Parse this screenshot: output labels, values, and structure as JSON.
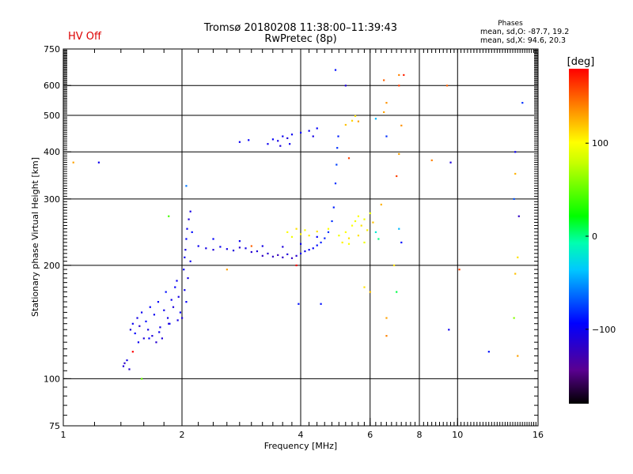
{
  "status_text": "HV Off",
  "title_line1": "Tromsø 20180208 11:38:00–11:39:43",
  "title_line2": "RwPretec (8p)",
  "stats": {
    "heading": "Phases",
    "o_line": "mean, sd,O: -87.7, 19.2",
    "x_line": "mean, sd,X:  94.6, 20.3"
  },
  "colors": {
    "status": "#dd0000",
    "grid": "#000000"
  },
  "colorbar": {
    "unit": "[deg]",
    "range": [
      -180,
      180
    ],
    "ticks": [
      {
        "value": 100,
        "label": "100"
      },
      {
        "value": 0,
        "label": "0"
      },
      {
        "value": -100,
        "label": "−100"
      }
    ]
  },
  "chart_data": {
    "type": "scatter",
    "xlabel": "Frequency [MHz]",
    "ylabel": "Stationary phase Virtual Height [km]",
    "x_scale": "log",
    "y_scale": "log",
    "xlim": [
      1,
      16
    ],
    "ylim": [
      75,
      750
    ],
    "grid": true,
    "x_ticks": [
      {
        "value": 1,
        "label": "1"
      },
      {
        "value": 2,
        "label": "2"
      },
      {
        "value": 4,
        "label": "4"
      },
      {
        "value": 6,
        "label": "6"
      },
      {
        "value": 8,
        "label": "8"
      },
      {
        "value": 10,
        "label": "10"
      },
      {
        "value": 16,
        "label": "16"
      }
    ],
    "y_ticks": [
      {
        "value": 75,
        "label": "75"
      },
      {
        "value": 100,
        "label": "100"
      },
      {
        "value": 200,
        "label": "200"
      },
      {
        "value": 300,
        "label": "300"
      },
      {
        "value": 400,
        "label": "400"
      },
      {
        "value": 500,
        "label": "500"
      },
      {
        "value": 600,
        "label": "600"
      },
      {
        "value": 750,
        "label": "750"
      }
    ],
    "x_grid": [
      2,
      4,
      6,
      8,
      10
    ],
    "y_grid": [
      100,
      200,
      300,
      400,
      500,
      600
    ],
    "color_value": "phase [deg]",
    "series": [
      {
        "points": [
          [
            1.42,
            108,
            -110
          ],
          [
            1.43,
            110,
            -120
          ],
          [
            1.45,
            112,
            -105
          ],
          [
            1.47,
            106,
            -115
          ],
          [
            1.48,
            135,
            -110
          ],
          [
            1.5,
            140,
            -100
          ],
          [
            1.52,
            132,
            -95
          ],
          [
            1.54,
            145,
            -105
          ],
          [
            1.56,
            138,
            -115
          ],
          [
            1.58,
            150,
            -100
          ],
          [
            1.6,
            128,
            -110
          ],
          [
            1.62,
            142,
            -90
          ],
          [
            1.64,
            135,
            -105
          ],
          [
            1.66,
            155,
            -95
          ],
          [
            1.68,
            130,
            -110
          ],
          [
            1.7,
            148,
            -100
          ],
          [
            1.72,
            125,
            -115
          ],
          [
            1.74,
            160,
            -95
          ],
          [
            1.76,
            137,
            -105
          ],
          [
            1.78,
            128,
            -110
          ],
          [
            1.8,
            152,
            -100
          ],
          [
            1.82,
            170,
            -90
          ],
          [
            1.84,
            145,
            -105
          ],
          [
            1.86,
            140,
            -95
          ],
          [
            1.88,
            162,
            -100
          ],
          [
            1.9,
            155,
            -110
          ],
          [
            1.92,
            175,
            -95
          ],
          [
            1.94,
            182,
            -100
          ],
          [
            1.96,
            165,
            -105
          ],
          [
            1.98,
            150,
            -95
          ],
          [
            2.0,
            145,
            -110
          ],
          [
            1.55,
            125,
            -100
          ],
          [
            1.65,
            128,
            -95
          ],
          [
            1.75,
            133,
            -100
          ],
          [
            1.85,
            140,
            -110
          ],
          [
            1.95,
            143,
            -105
          ],
          [
            2.02,
            195,
            -95
          ],
          [
            2.03,
            210,
            -100
          ],
          [
            2.04,
            220,
            -105
          ],
          [
            2.05,
            235,
            -95
          ],
          [
            2.06,
            250,
            -100
          ],
          [
            2.08,
            265,
            -110
          ],
          [
            2.1,
            278,
            -105
          ],
          [
            2.12,
            245,
            -90
          ],
          [
            2.03,
            172,
            -100
          ],
          [
            2.05,
            160,
            -95
          ],
          [
            2.07,
            185,
            -105
          ],
          [
            2.1,
            205,
            -100
          ]
        ]
      },
      {
        "points": [
          [
            2.2,
            225,
            -100
          ],
          [
            2.3,
            222,
            -105
          ],
          [
            2.4,
            220,
            -110
          ],
          [
            2.5,
            224,
            -100
          ],
          [
            2.6,
            221,
            -105
          ],
          [
            2.7,
            219,
            -110
          ],
          [
            2.8,
            223,
            -115
          ],
          [
            2.9,
            222,
            -105
          ],
          [
            3.0,
            217,
            -115
          ],
          [
            3.1,
            218,
            -110
          ],
          [
            3.2,
            212,
            -120
          ],
          [
            3.3,
            215,
            -115
          ],
          [
            3.4,
            211,
            -120
          ],
          [
            3.5,
            213,
            -125
          ],
          [
            3.6,
            210,
            -118
          ],
          [
            3.7,
            214,
            -110
          ],
          [
            3.8,
            209,
            -120
          ],
          [
            3.9,
            212,
            -115
          ],
          [
            4.0,
            215,
            -105
          ],
          [
            4.1,
            218,
            -100
          ],
          [
            4.2,
            220,
            -100
          ],
          [
            4.3,
            222,
            -95
          ],
          [
            4.4,
            226,
            -90
          ],
          [
            4.5,
            230,
            -85
          ],
          [
            4.6,
            236,
            -85
          ],
          [
            4.7,
            245,
            -80
          ],
          [
            4.8,
            262,
            -80
          ],
          [
            4.85,
            285,
            -85
          ],
          [
            4.9,
            330,
            -80
          ],
          [
            4.93,
            370,
            -75
          ],
          [
            4.95,
            410,
            -80
          ],
          [
            4.98,
            440,
            -85
          ],
          [
            2.4,
            235,
            -95
          ],
          [
            2.8,
            232,
            -100
          ],
          [
            3.2,
            225,
            -105
          ],
          [
            3.6,
            224,
            -110
          ],
          [
            4.0,
            228,
            -100
          ],
          [
            4.4,
            238,
            -95
          ]
        ]
      },
      {
        "points": [
          [
            3.3,
            420,
            -100
          ],
          [
            3.4,
            432,
            -95
          ],
          [
            3.5,
            428,
            -105
          ],
          [
            3.6,
            440,
            -100
          ],
          [
            3.7,
            435,
            -110
          ],
          [
            3.8,
            445,
            -100
          ],
          [
            4.0,
            450,
            -95
          ],
          [
            4.2,
            455,
            -100
          ],
          [
            4.3,
            440,
            -105
          ],
          [
            4.4,
            462,
            -95
          ],
          [
            3.55,
            415,
            -110
          ],
          [
            3.75,
            420,
            -100
          ],
          [
            2.8,
            425,
            -100
          ],
          [
            2.95,
            430,
            -95
          ]
        ]
      },
      {
        "points": [
          [
            3.7,
            245,
            100
          ],
          [
            3.8,
            238,
            95
          ],
          [
            3.9,
            250,
            110
          ],
          [
            4.0,
            242,
            105
          ],
          [
            4.1,
            248,
            100
          ],
          [
            4.2,
            240,
            105
          ],
          [
            4.4,
            246,
            110
          ],
          [
            4.7,
            250,
            100
          ],
          [
            5.0,
            240,
            95
          ],
          [
            5.2,
            245,
            100
          ],
          [
            5.3,
            236,
            110
          ],
          [
            5.4,
            255,
            100
          ],
          [
            5.5,
            262,
            95
          ],
          [
            5.6,
            270,
            100
          ],
          [
            5.7,
            255,
            110
          ],
          [
            5.8,
            265,
            95
          ],
          [
            5.9,
            248,
            105
          ],
          [
            6.0,
            275,
            90
          ],
          [
            5.1,
            230,
            105
          ],
          [
            5.3,
            228,
            100
          ],
          [
            5.6,
            240,
            110
          ],
          [
            5.8,
            230,
            95
          ],
          [
            5.2,
            472,
            120
          ],
          [
            5.4,
            484,
            115
          ],
          [
            5.5,
            498,
            110
          ],
          [
            5.6,
            482,
            130
          ],
          [
            6.4,
            290,
            125
          ],
          [
            6.1,
            260,
            120
          ]
        ]
      },
      {
        "points": [
          [
            6.5,
            620,
            150
          ],
          [
            7.1,
            640,
            140
          ],
          [
            7.3,
            640,
            170
          ],
          [
            7.1,
            600,
            160
          ],
          [
            6.6,
            540,
            135
          ],
          [
            6.5,
            510,
            130
          ],
          [
            7.2,
            470,
            135
          ],
          [
            7.1,
            395,
            130
          ],
          [
            8.6,
            380,
            140
          ],
          [
            9.4,
            600,
            150
          ],
          [
            7.0,
            345,
            160
          ],
          [
            14.0,
            350,
            125
          ],
          [
            14.2,
            210,
            110
          ],
          [
            14.0,
            190,
            120
          ],
          [
            13.9,
            145,
            60
          ],
          [
            14.2,
            115,
            130
          ],
          [
            6.3,
            235,
            0
          ],
          [
            6.2,
            245,
            -20
          ],
          [
            7.1,
            250,
            -40
          ],
          [
            7.0,
            170,
            10
          ],
          [
            6.2,
            490,
            -40
          ],
          [
            7.2,
            230,
            -90
          ],
          [
            6.6,
            440,
            -80
          ],
          [
            5.2,
            600,
            -110
          ],
          [
            12.0,
            118,
            -90
          ],
          [
            9.5,
            135,
            -100
          ],
          [
            14.3,
            270,
            -120
          ],
          [
            13.9,
            300,
            -70
          ],
          [
            14.6,
            540,
            -80
          ],
          [
            14.0,
            400,
            -100
          ],
          [
            9.6,
            375,
            -110
          ],
          [
            4.9,
            660,
            -90
          ],
          [
            1.85,
            270,
            40
          ],
          [
            2.05,
            325,
            -60
          ],
          [
            1.23,
            375,
            -100
          ],
          [
            1.06,
            375,
            130
          ],
          [
            1.58,
            100,
            50
          ],
          [
            1.5,
            118,
            180
          ],
          [
            5.3,
            385,
            160
          ],
          [
            3.9,
            200,
            180
          ],
          [
            3.95,
            158,
            -90
          ],
          [
            4.5,
            158,
            -90
          ],
          [
            5.8,
            175,
            110
          ],
          [
            6.0,
            170,
            120
          ],
          [
            10.1,
            195,
            160
          ],
          [
            6.9,
            200,
            110
          ],
          [
            6.6,
            145,
            130
          ],
          [
            6.6,
            130,
            140
          ],
          [
            3.0,
            225,
            150
          ],
          [
            2.6,
            195,
            130
          ]
        ]
      }
    ]
  }
}
